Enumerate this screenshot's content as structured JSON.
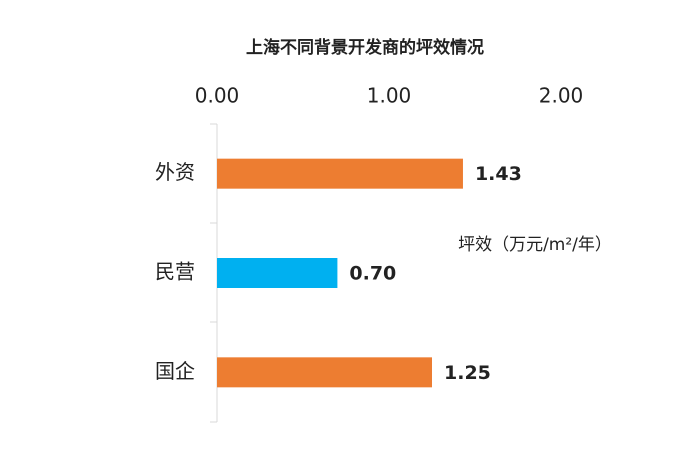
{
  "chart_data": {
    "type": "bar",
    "orientation": "horizontal",
    "title": "上海不同背景开发商的坪效情况",
    "annotation": "坪效（万元/m²/年）",
    "categories": [
      "外资",
      "民营",
      "国企"
    ],
    "values": [
      1.43,
      0.7,
      1.25
    ],
    "value_labels": [
      "1.43",
      "0.70",
      "1.25"
    ],
    "colors": [
      "#ed7d31",
      "#00b0f0",
      "#ed7d31"
    ],
    "xlim": [
      0,
      2
    ],
    "xticks": [
      {
        "value": 0,
        "label": "0.00"
      },
      {
        "value": 1,
        "label": "1.00"
      },
      {
        "value": 2,
        "label": "2.00"
      }
    ],
    "grid": false
  }
}
